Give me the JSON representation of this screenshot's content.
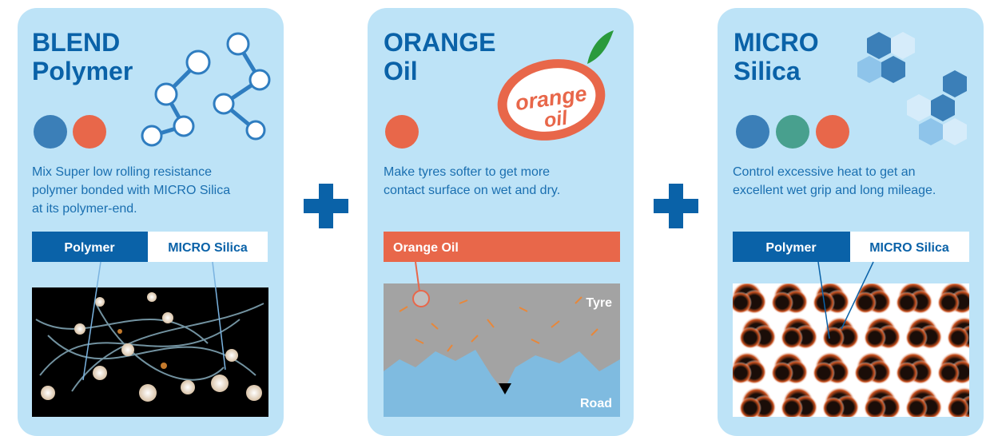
{
  "cards": [
    {
      "title": [
        "BLEND",
        "Polymer"
      ],
      "description": [
        "Mix Super low rolling resistance",
        "polymer bonded with MICRO Silica",
        "at its polymer-end."
      ],
      "labels": [
        "Polymer",
        "MICRO Silica"
      ]
    },
    {
      "title": [
        "ORANGE",
        "Oil"
      ],
      "logo": [
        "orange",
        "oil"
      ],
      "description": [
        "Make tyres softer to get more",
        "contact surface on wet and dry."
      ],
      "labels": [
        "Orange Oil"
      ],
      "image_labels": [
        "Tyre",
        "Road"
      ]
    },
    {
      "title": [
        "MICRO",
        "Silica"
      ],
      "description": [
        "Control excessive heat to get an",
        "excellent wet grip and long mileage."
      ],
      "labels": [
        "Polymer",
        "MICRO Silica"
      ]
    }
  ]
}
